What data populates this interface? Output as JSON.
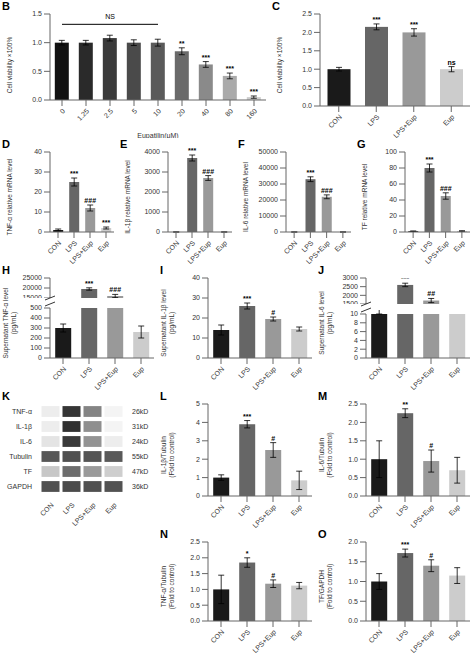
{
  "chart_data": [
    {
      "type": "bar",
      "title": "B",
      "xlabel": "Eupatilin(μM)",
      "ylabel": "Cell viability ×100%",
      "categories": [
        "0",
        "1.25",
        "2.5",
        "5",
        "10",
        "20",
        "40",
        "80",
        "160"
      ],
      "values": [
        1.0,
        1.0,
        1.08,
        1.0,
        1.0,
        0.85,
        0.62,
        0.42,
        0.05
      ],
      "errors": [
        0.04,
        0.04,
        0.05,
        0.05,
        0.06,
        0.06,
        0.05,
        0.05,
        0.02
      ],
      "colors": [
        "#111111",
        "#2a2a2a",
        "#3a3a3a",
        "#4a4a4a",
        "#5a5a5a",
        "#6a6a6a",
        "#8a8a8a",
        "#aaaaaa",
        "#cccccc"
      ],
      "ylim": [
        0,
        1.5
      ],
      "yticks": [
        {
          "value": 0,
          "label": "0.0"
        },
        0.5,
        {
          "value": 1,
          "label": "1.0"
        },
        1.5
      ],
      "annotations": [
        null,
        null,
        null,
        null,
        null,
        "**",
        "***",
        "***",
        "***"
      ],
      "bracket": {
        "from": "0",
        "to": "10",
        "y": 1.32,
        "label": "NS"
      }
    },
    {
      "type": "bar",
      "title": "C",
      "ylabel": "Cell viability ×100%",
      "categories": [
        "CON",
        "LPS",
        "LPS+Eup",
        "Eup"
      ],
      "values": [
        1.0,
        2.15,
        2.0,
        1.0
      ],
      "errors": [
        0.05,
        0.08,
        0.1,
        0.07
      ],
      "colors": [
        "#1a1a1a",
        "#666666",
        "#999999",
        "#cccccc"
      ],
      "ylim": [
        0,
        2.5
      ],
      "yticks": [
        {
          "value": 0,
          "label": "0.0"
        },
        0.5,
        {
          "value": 1,
          "label": "1.0"
        },
        1.5,
        {
          "value": 2,
          "label": "2.0"
        },
        2.5
      ],
      "annotations": [
        null,
        "***",
        "***",
        "ns"
      ]
    },
    {
      "type": "bar",
      "title": "D",
      "ylabel": "TNF-α relative mRNA level",
      "categories": [
        "CON",
        "LPS",
        "LPS+Eup",
        "Eup"
      ],
      "values": [
        1.0,
        25.0,
        12.0,
        2.0
      ],
      "errors": [
        0.5,
        2.0,
        1.5,
        0.5
      ],
      "colors": [
        "#1a1a1a",
        "#666666",
        "#999999",
        "#cccccc"
      ],
      "ylim": [
        0,
        40
      ],
      "yticks": [
        0,
        10,
        20,
        30,
        40
      ],
      "annotations": [
        null,
        "***",
        "###",
        "***"
      ]
    },
    {
      "type": "bar",
      "title": "E",
      "ylabel": "IL-1β relative mRNA level",
      "categories": [
        "CON",
        "LPS",
        "LPS+Eup",
        "Eup"
      ],
      "values": [
        1.0,
        3700,
        2700,
        1.0
      ],
      "errors": [
        0.5,
        150,
        120,
        0.3
      ],
      "colors": [
        "#1a1a1a",
        "#666666",
        "#999999",
        "#cccccc"
      ],
      "ylim": [
        0,
        4000
      ],
      "yticks": [
        0,
        1000,
        2000,
        3000,
        4000
      ],
      "annotations": [
        null,
        "***",
        "###",
        null
      ]
    },
    {
      "type": "bar",
      "title": "F",
      "ylabel": "IL-6 relative mRNA level",
      "categories": [
        "CON",
        "LPS",
        "LPS+Eup",
        "Eup"
      ],
      "values": [
        1.0,
        33000,
        22000,
        1.0
      ],
      "errors": [
        0.5,
        1500,
        1200,
        0.3
      ],
      "colors": [
        "#1a1a1a",
        "#666666",
        "#999999",
        "#cccccc"
      ],
      "ylim": [
        0,
        50000
      ],
      "yticks": [
        0,
        10000,
        20000,
        30000,
        40000,
        50000
      ],
      "annotations": [
        null,
        "***",
        "###",
        null
      ]
    },
    {
      "type": "bar",
      "title": "G",
      "ylabel": "TF relative mRNA level",
      "categories": [
        "CON",
        "LPS",
        "LPS+Eup",
        "Eup"
      ],
      "values": [
        1.0,
        80,
        45,
        1.2
      ],
      "errors": [
        0.3,
        5,
        4,
        0.4
      ],
      "colors": [
        "#1a1a1a",
        "#666666",
        "#999999",
        "#cccccc"
      ],
      "ylim": [
        0,
        100
      ],
      "yticks": [
        0,
        20,
        40,
        60,
        80,
        100
      ],
      "annotations": [
        null,
        "***",
        "###",
        null
      ]
    },
    {
      "type": "bar",
      "title": "H",
      "ylabel": "Supernatant TNF-α level\n(pg/mL)",
      "categories": [
        "CON",
        "LPS",
        "LPS+Eup",
        "Eup"
      ],
      "values": [
        300,
        19500,
        16000,
        260
      ],
      "errors": [
        40,
        600,
        800,
        60
      ],
      "colors": [
        "#1a1a1a",
        "#666666",
        "#999999",
        "#cccccc"
      ],
      "ylim": [
        0,
        25000
      ],
      "yticks": [
        0,
        100,
        200,
        300,
        400,
        500,
        15000,
        20000,
        25000
      ],
      "annotations": [
        null,
        "***",
        "###",
        null
      ]
    },
    {
      "type": "bar",
      "title": "I",
      "ylabel": "Supernatant IL-1β level\n(pg/mL)",
      "categories": [
        "CON",
        "LPS",
        "LPS+Eup",
        "Eup"
      ],
      "values": [
        14,
        26,
        19.5,
        14.5
      ],
      "errors": [
        2.5,
        1.5,
        1.0,
        1.0
      ],
      "colors": [
        "#1a1a1a",
        "#666666",
        "#999999",
        "#cccccc"
      ],
      "ylim": [
        0,
        40
      ],
      "yticks": [
        0,
        10,
        20,
        30,
        40
      ],
      "annotations": [
        null,
        "***",
        "#",
        null
      ]
    },
    {
      "type": "bar",
      "title": "J",
      "ylabel": "Supernatant IL-6 level\n(pg/mL)",
      "categories": [
        "CON",
        "LPS",
        "LPS+Eup",
        "Eup"
      ],
      "values": [
        15,
        2600,
        1700,
        25
      ],
      "errors": [
        5,
        100,
        120,
        8
      ],
      "colors": [
        "#1a1a1a",
        "#666666",
        "#999999",
        "#cccccc"
      ],
      "ylim": [
        0,
        3000
      ],
      "yticks": [
        0,
        2,
        4,
        6,
        8,
        10,
        1500,
        2000,
        2500,
        3000
      ],
      "annotations": [
        null,
        "***",
        "##",
        null
      ]
    },
    {
      "type": "heatmap",
      "title": "K",
      "categories": [
        "CON",
        "LPS",
        "LPS+Eup",
        "Eup"
      ],
      "y_categories": [
        "TNF-α",
        "IL-1β",
        "IL-6",
        "Tubulin",
        "TF",
        "GAPDH"
      ],
      "y2_categories": [
        "26kD",
        "31kD",
        "24kD",
        "55kD",
        "47kD",
        "36kD"
      ],
      "cells": [
        [
          0.08,
          0.9,
          0.55,
          0.05
        ],
        [
          0.08,
          0.92,
          0.5,
          0.05
        ],
        [
          0.12,
          0.88,
          0.48,
          0.08
        ],
        [
          0.75,
          0.78,
          0.76,
          0.74
        ],
        [
          0.25,
          0.65,
          0.45,
          0.22
        ],
        [
          0.78,
          0.8,
          0.78,
          0.77
        ]
      ]
    },
    {
      "type": "bar",
      "title": "L",
      "ylabel": "IL-1β/Tubulin\n(Fold to control)",
      "categories": [
        "CON",
        "LPS",
        "LPS+Eup",
        "Eup"
      ],
      "values": [
        1.0,
        3.9,
        2.5,
        0.85
      ],
      "errors": [
        0.15,
        0.2,
        0.4,
        0.5
      ],
      "colors": [
        "#1a1a1a",
        "#666666",
        "#999999",
        "#cccccc"
      ],
      "ylim": [
        0,
        5
      ],
      "yticks": [
        0,
        1,
        2,
        3,
        4,
        5
      ],
      "annotations": [
        null,
        "***",
        "#",
        null
      ]
    },
    {
      "type": "bar",
      "title": "M",
      "ylabel": "IL-6/Tubulin\n(Fold to control)",
      "categories": [
        "CON",
        "LPS",
        "LPS+Eup",
        "Eup"
      ],
      "values": [
        1.0,
        2.25,
        0.95,
        0.7
      ],
      "errors": [
        0.5,
        0.12,
        0.3,
        0.35
      ],
      "colors": [
        "#1a1a1a",
        "#666666",
        "#999999",
        "#cccccc"
      ],
      "ylim": [
        0,
        2.5
      ],
      "yticks": [
        {
          "value": 0,
          "label": "0.0"
        },
        0.5,
        {
          "value": 1,
          "label": "1.0"
        },
        1.5,
        {
          "value": 2,
          "label": "2.0"
        },
        2.5
      ],
      "annotations": [
        null,
        "**",
        "#",
        null
      ]
    },
    {
      "type": "bar",
      "title": "N",
      "ylabel": "TNF-α/Tubulin\n(Fold to control)",
      "categories": [
        "CON",
        "LPS",
        "LPS+Eup",
        "Eup"
      ],
      "values": [
        1.0,
        1.85,
        1.18,
        1.12
      ],
      "errors": [
        0.45,
        0.15,
        0.12,
        0.1
      ],
      "colors": [
        "#1a1a1a",
        "#666666",
        "#999999",
        "#cccccc"
      ],
      "ylim": [
        0,
        2.5
      ],
      "yticks": [
        {
          "value": 0,
          "label": "0.0"
        },
        0.5,
        {
          "value": 1,
          "label": "1.0"
        },
        1.5,
        {
          "value": 2,
          "label": "2.0"
        },
        2.5
      ],
      "annotations": [
        null,
        "*",
        "#",
        null
      ]
    },
    {
      "type": "bar",
      "title": "O",
      "ylabel": "TF/GAPDH\n(Fold to control)",
      "categories": [
        "CON",
        "LPS",
        "LPS+Eup",
        "Eup"
      ],
      "values": [
        1.0,
        1.72,
        1.4,
        1.15
      ],
      "errors": [
        0.2,
        0.1,
        0.15,
        0.2
      ],
      "colors": [
        "#1a1a1a",
        "#666666",
        "#999999",
        "#cccccc"
      ],
      "ylim": [
        0,
        2.0
      ],
      "yticks": [
        {
          "value": 0,
          "label": "0.0"
        },
        0.5,
        {
          "value": 1,
          "label": "1.0"
        },
        1.5,
        {
          "value": 2,
          "label": "2.0"
        }
      ],
      "annotations": [
        null,
        "***",
        "#",
        null
      ]
    }
  ]
}
